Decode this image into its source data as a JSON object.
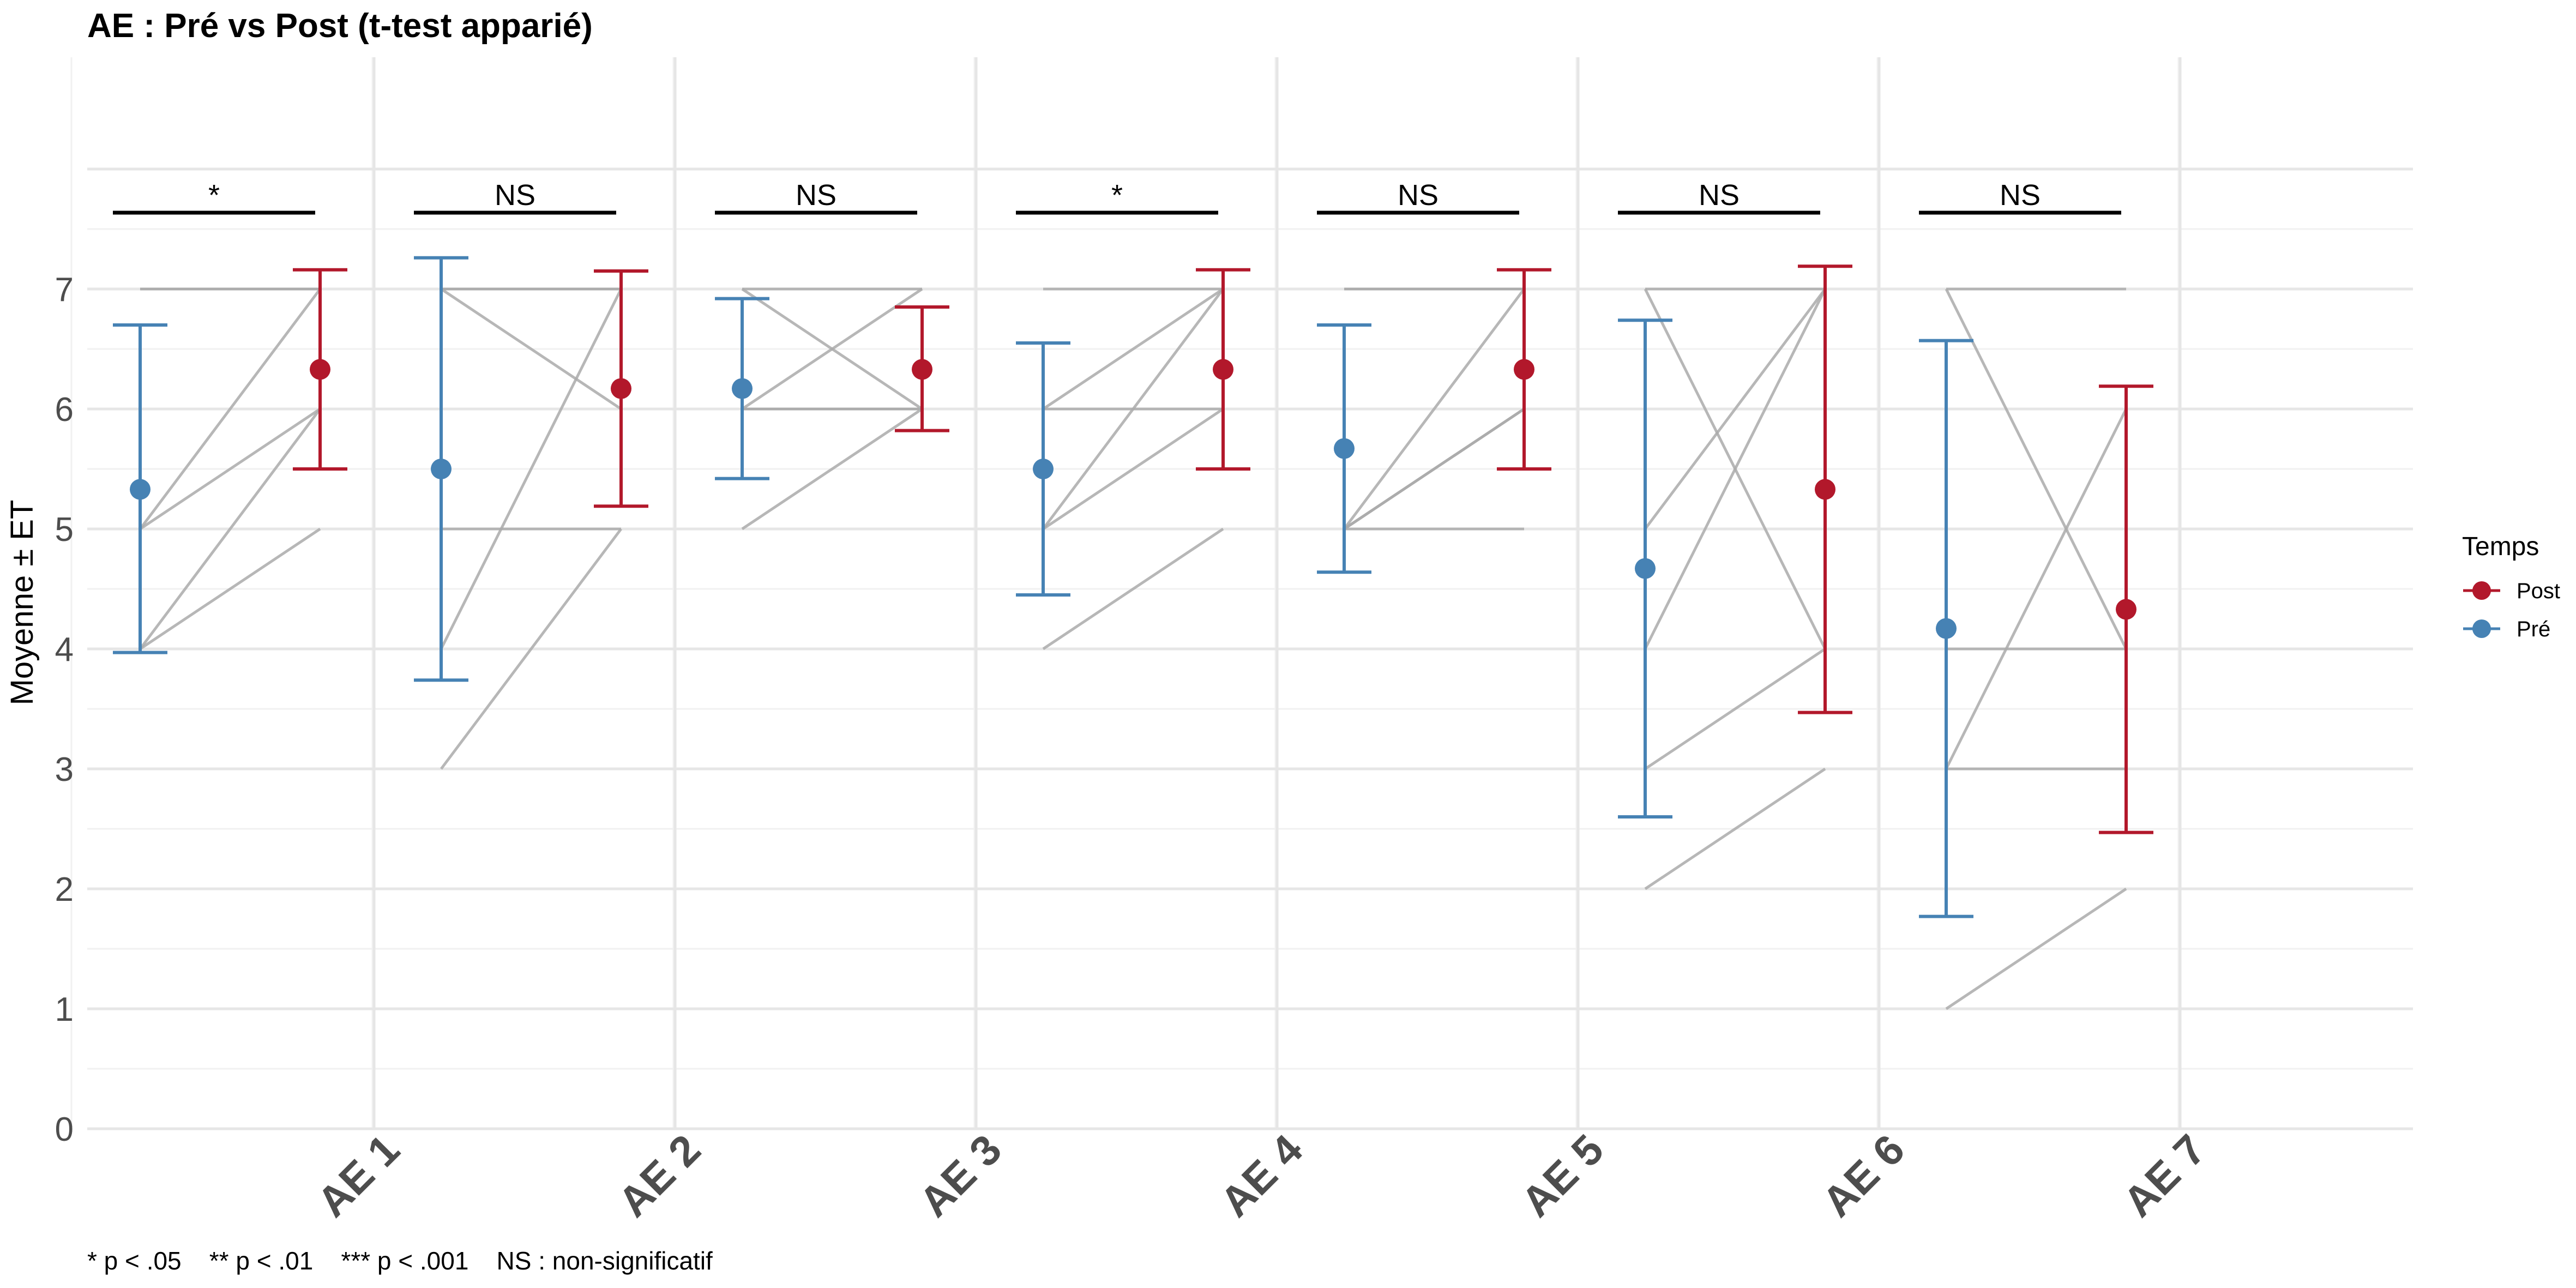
{
  "title": "AE : Pré vs Post (t-test apparié)",
  "caption": "* p < .05    ** p < .01    *** p < .001    NS : non-significatif",
  "legend": {
    "title": "Temps",
    "items": [
      {
        "label": "Post",
        "color": "#B2182B"
      },
      {
        "label": "Pré",
        "color": "#4682B4"
      }
    ]
  },
  "chart_data": {
    "type": "scatter",
    "title": "AE : Pré vs Post (t-test apparié)",
    "ylabel": "Moyenne ± ET",
    "xlabel": "",
    "ylim": [
      0,
      7.8
    ],
    "yticks": [
      0,
      1,
      2,
      3,
      4,
      5,
      6,
      7
    ],
    "categories": [
      "AE 1",
      "AE 2",
      "AE 3",
      "AE 4",
      "AE 5",
      "AE 6",
      "AE 7"
    ],
    "colors": {
      "pre": "#4682B4",
      "post": "#B2182B",
      "individual": "#AAAAAA"
    },
    "series": [
      {
        "name": "Pré",
        "mean": [
          5.33,
          5.5,
          6.17,
          5.5,
          5.67,
          4.67,
          4.17
        ],
        "lower": [
          3.97,
          3.74,
          5.42,
          4.45,
          4.64,
          2.6,
          1.77
        ],
        "upper": [
          6.7,
          7.26,
          6.92,
          6.55,
          6.7,
          6.74,
          6.57
        ]
      },
      {
        "name": "Post",
        "mean": [
          6.33,
          6.17,
          6.33,
          6.33,
          6.33,
          5.33,
          4.33
        ],
        "lower": [
          5.5,
          5.19,
          5.82,
          5.5,
          5.5,
          3.47,
          2.47
        ],
        "upper": [
          7.16,
          7.15,
          6.85,
          7.16,
          7.16,
          7.19,
          6.19
        ]
      }
    ],
    "individual_lines": [
      [
        [
          7,
          7
        ],
        [
          5,
          6
        ],
        [
          4,
          6
        ],
        [
          5,
          7
        ],
        [
          4,
          5
        ],
        [
          7,
          7
        ]
      ],
      [
        [
          7,
          7
        ],
        [
          7,
          6
        ],
        [
          5,
          5
        ],
        [
          4,
          7
        ],
        [
          3,
          5
        ],
        [
          7,
          7
        ]
      ],
      [
        [
          7,
          7
        ],
        [
          6,
          6
        ],
        [
          6,
          6
        ],
        [
          7,
          6
        ],
        [
          5,
          6
        ],
        [
          6,
          7
        ]
      ],
      [
        [
          6,
          7
        ],
        [
          6,
          6
        ],
        [
          5,
          6
        ],
        [
          5,
          7
        ],
        [
          4,
          5
        ],
        [
          7,
          7
        ]
      ],
      [
        [
          7,
          7
        ],
        [
          5,
          6
        ],
        [
          5,
          6
        ],
        [
          5,
          7
        ],
        [
          5,
          5
        ],
        [
          7,
          7
        ]
      ],
      [
        [
          7,
          7
        ],
        [
          5,
          7
        ],
        [
          4,
          7
        ],
        [
          3,
          4
        ],
        [
          2,
          3
        ],
        [
          7,
          4
        ]
      ],
      [
        [
          7,
          7
        ],
        [
          7,
          4
        ],
        [
          4,
          4
        ],
        [
          3,
          6
        ],
        [
          3,
          3
        ],
        [
          1,
          2
        ]
      ]
    ],
    "significance": [
      "*",
      "NS",
      "NS",
      "*",
      "NS",
      "NS",
      "NS"
    ]
  }
}
